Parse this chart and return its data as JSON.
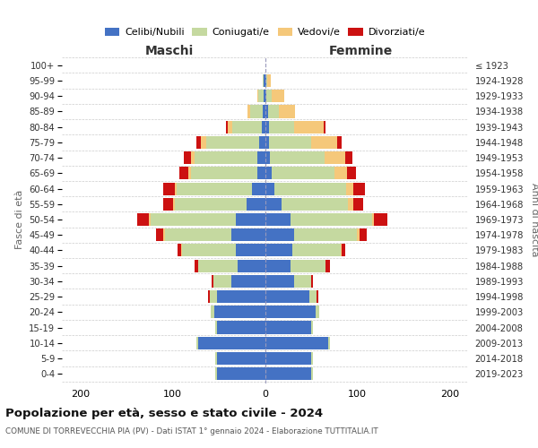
{
  "age_groups": [
    "0-4",
    "5-9",
    "10-14",
    "15-19",
    "20-24",
    "25-29",
    "30-34",
    "35-39",
    "40-44",
    "45-49",
    "50-54",
    "55-59",
    "60-64",
    "65-69",
    "70-74",
    "75-79",
    "80-84",
    "85-89",
    "90-94",
    "95-99",
    "100+"
  ],
  "birth_years": [
    "2019-2023",
    "2014-2018",
    "2009-2013",
    "2004-2008",
    "1999-2003",
    "1994-1998",
    "1989-1993",
    "1984-1988",
    "1979-1983",
    "1974-1978",
    "1969-1973",
    "1964-1968",
    "1959-1963",
    "1954-1958",
    "1949-1953",
    "1944-1948",
    "1939-1943",
    "1934-1938",
    "1929-1933",
    "1924-1928",
    "≤ 1923"
  ],
  "maschi": {
    "celibi": [
      52,
      52,
      72,
      52,
      55,
      52,
      36,
      30,
      32,
      36,
      32,
      20,
      14,
      8,
      8,
      6,
      3,
      2,
      1,
      1,
      0
    ],
    "coniugati": [
      2,
      2,
      2,
      2,
      4,
      8,
      20,
      42,
      58,
      72,
      92,
      78,
      82,
      72,
      68,
      58,
      32,
      14,
      6,
      1,
      0
    ],
    "vedovi": [
      0,
      0,
      0,
      0,
      0,
      0,
      0,
      0,
      1,
      2,
      2,
      2,
      2,
      3,
      4,
      5,
      5,
      3,
      1,
      0,
      0
    ],
    "divorziati": [
      0,
      0,
      0,
      0,
      0,
      2,
      2,
      4,
      4,
      8,
      12,
      10,
      12,
      10,
      8,
      5,
      2,
      0,
      0,
      0,
      0
    ]
  },
  "femmine": {
    "nubili": [
      50,
      50,
      68,
      50,
      55,
      48,
      32,
      28,
      30,
      32,
      28,
      18,
      10,
      7,
      5,
      4,
      4,
      3,
      1,
      1,
      0
    ],
    "coniugate": [
      2,
      2,
      2,
      2,
      4,
      8,
      18,
      38,
      52,
      68,
      88,
      72,
      78,
      68,
      60,
      46,
      28,
      12,
      6,
      1,
      0
    ],
    "vedove": [
      0,
      0,
      0,
      0,
      0,
      0,
      0,
      0,
      1,
      2,
      2,
      6,
      8,
      14,
      22,
      28,
      32,
      18,
      14,
      4,
      0
    ],
    "divorziate": [
      0,
      0,
      0,
      0,
      0,
      2,
      2,
      4,
      4,
      8,
      15,
      10,
      12,
      10,
      8,
      5,
      2,
      0,
      0,
      0,
      0
    ]
  },
  "colors": {
    "celibi": "#4472c4",
    "coniugati": "#c5d9a0",
    "vedovi": "#f5c87a",
    "divorziati": "#cc1111"
  },
  "xlim": 220,
  "title_main": "Popolazione per età, sesso e stato civile - 2024",
  "title_sub": "COMUNE DI TORREVECCHIA PIA (PV) - Dati ISTAT 1° gennaio 2024 - Elaborazione TUTTITALIA.IT",
  "legend_labels": [
    "Celibi/Nubili",
    "Coniugati/e",
    "Vedovi/e",
    "Divorziati/e"
  ],
  "ylabel_left": "Fasce di età",
  "ylabel_right": "Anni di nascita",
  "xlabel_left": "Maschi",
  "xlabel_right": "Femmine"
}
